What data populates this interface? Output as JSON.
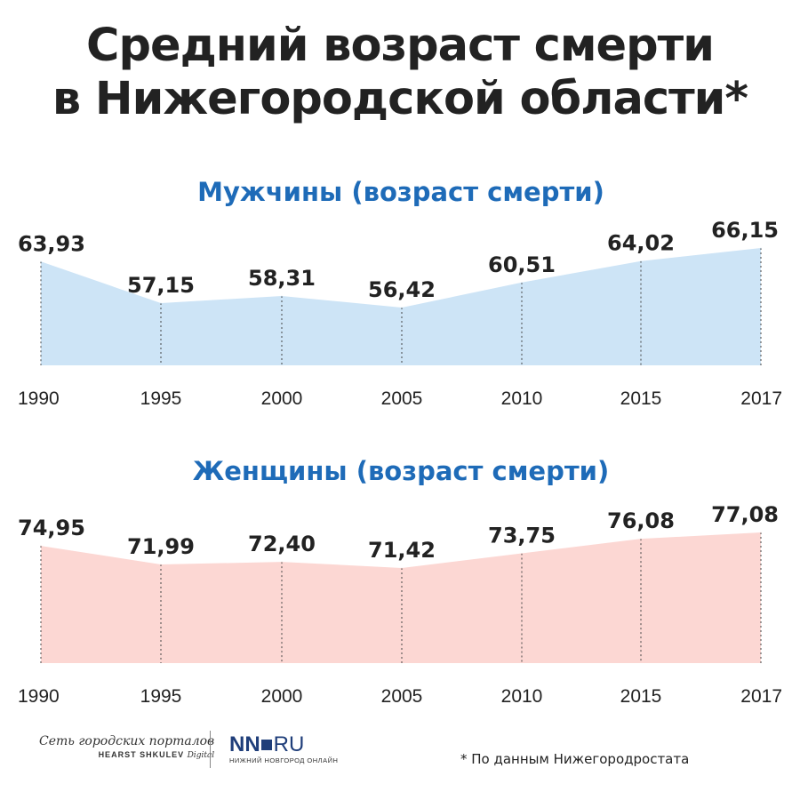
{
  "title": {
    "line1": "Средний возраст смерти",
    "line2": "в Нижегородской области*"
  },
  "colors": {
    "subtitle": "#1e6bb8",
    "men_fill": "#cde4f6",
    "women_fill": "#fcd7d3",
    "text": "#222222"
  },
  "chart_data": [
    {
      "type": "area",
      "title": "Мужчины (возраст смерти)",
      "x": [
        "1990",
        "1995",
        "2000",
        "2005",
        "2010",
        "2015",
        "2017"
      ],
      "values": [
        63.93,
        57.15,
        58.31,
        56.42,
        60.51,
        64.02,
        66.15
      ],
      "value_labels": [
        "63,93",
        "57,15",
        "58,31",
        "56,42",
        "60,51",
        "64,02",
        "66,15"
      ],
      "fill_color": "#cde4f6",
      "grid": "vertical dotted at points"
    },
    {
      "type": "area",
      "title": "Женщины (возраст смерти)",
      "x": [
        "1990",
        "1995",
        "2000",
        "2005",
        "2010",
        "2015",
        "2017"
      ],
      "values": [
        74.95,
        71.99,
        72.4,
        71.42,
        73.75,
        76.08,
        77.08
      ],
      "value_labels": [
        "74,95",
        "71,99",
        "72,40",
        "71,42",
        "73,75",
        "76,08",
        "77,08"
      ],
      "fill_color": "#fcd7d3",
      "grid": "vertical dotted at points"
    }
  ],
  "footer": {
    "network_line1": "Сеть городских порталов",
    "network_brand": "HEARST SHKULEV",
    "network_digital": "Digital",
    "nn_logo_left": "NN",
    "nn_logo_right": "RU",
    "nn_sub": "НИЖНИЙ НОВГОРОД ОНЛАЙН",
    "footnote": "* По данным Нижегородростата"
  }
}
